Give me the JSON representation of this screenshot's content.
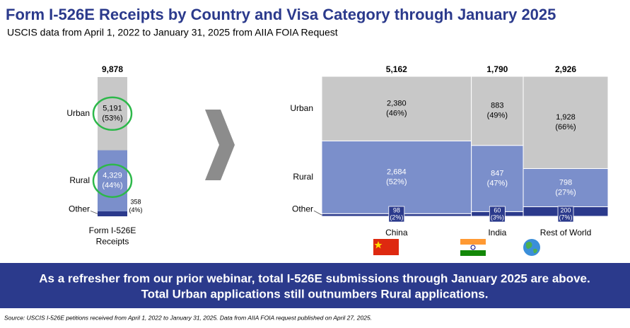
{
  "title": "Form I-526E Receipts by Country and Visa Category through January 2025",
  "subtitle": "USCIS data from April 1, 2022 to January 31, 2025 from AIIA FOIA Request",
  "banner": [
    "As a refresher from our prior webinar, total I-526E submissions through January 2025 are above.",
    "Total Urban applications still outnumbers Rural applications."
  ],
  "source": "Source: USCIS I-526E petitions received from April 1, 2022 to January 31, 2025. Data from AIIA FOIA request published on April 27, 2025.",
  "chart_data": [
    {
      "type": "stacked_bar",
      "categories": [
        "Form I-526E\nReceipts"
      ],
      "totals": [
        9878
      ],
      "total_labels": [
        "9,878"
      ],
      "series": [
        {
          "name": "Urban",
          "color": "#c8c8c8",
          "values": [
            5191
          ],
          "value_labels": [
            "5,191"
          ],
          "share_labels": [
            "(53%)"
          ]
        },
        {
          "name": "Rural",
          "color": "#7b8fcb",
          "values": [
            4329
          ],
          "value_labels": [
            "4,329"
          ],
          "share_labels": [
            "(44%)"
          ]
        },
        {
          "name": "Other",
          "color": "#2b3a8c",
          "values": [
            358
          ],
          "share_labels": [
            "(4%)"
          ]
        }
      ]
    },
    {
      "type": "mekko",
      "categories": [
        "China",
        "India",
        "Rest of World"
      ],
      "totals": [
        5162,
        1790,
        2926
      ],
      "total_labels": [
        "5,162",
        "1,790",
        "2,926"
      ],
      "series": [
        {
          "name": "Urban",
          "color": "#c8c8c8",
          "values": [
            2380,
            883,
            1928
          ],
          "value_labels": [
            "2,380",
            "883",
            "1,928"
          ],
          "share_labels": [
            "(46%)",
            "(49%)",
            "(66%)"
          ]
        },
        {
          "name": "Rural",
          "color": "#7b8fcb",
          "values": [
            2684,
            847,
            798
          ],
          "value_labels": [
            "2,684",
            "847",
            "798"
          ],
          "share_labels": [
            "(52%)",
            "(47%)",
            "(27%)"
          ]
        },
        {
          "name": "Other",
          "color": "#2b3a8c",
          "values": [
            98,
            60,
            200
          ],
          "share_labels": [
            "(2%)",
            "(3%)",
            "(7%)"
          ]
        }
      ]
    }
  ]
}
